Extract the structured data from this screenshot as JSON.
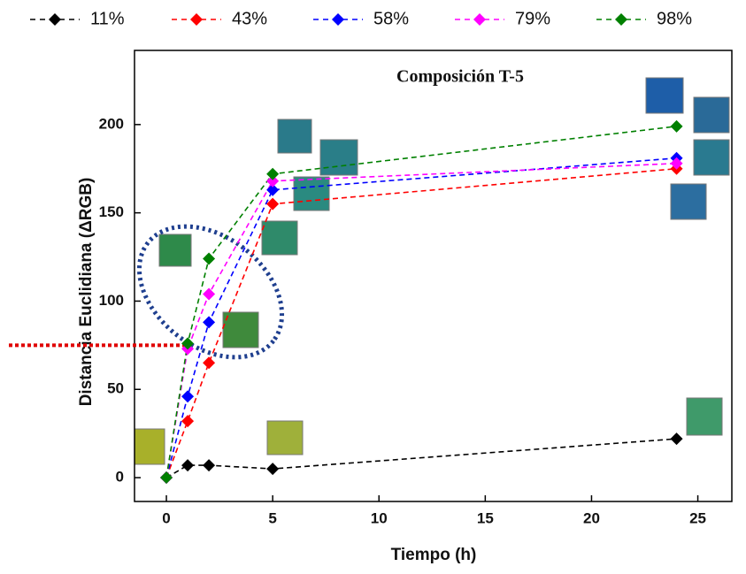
{
  "chart_data": {
    "type": "line",
    "title": "Composición T-5",
    "x_label": "Tiempo (h)",
    "y_label": "Distancia Euclidiana (ΔRGB)",
    "x": [
      0,
      1,
      2,
      5,
      24
    ],
    "series": [
      {
        "name": "11%",
        "color": "#000000",
        "values": [
          0,
          7,
          7,
          5,
          22
        ]
      },
      {
        "name": "43%",
        "color": "#ff0000",
        "values": [
          0,
          32,
          65,
          155,
          175
        ]
      },
      {
        "name": "58%",
        "color": "#0000ff",
        "values": [
          0,
          46,
          88,
          163,
          181
        ]
      },
      {
        "name": "79%",
        "color": "#ff00ff",
        "values": [
          0,
          73,
          104,
          168,
          178
        ]
      },
      {
        "name": "98%",
        "color": "#008000",
        "values": [
          0,
          76,
          124,
          172,
          199
        ]
      }
    ],
    "xlim": [
      -1.5,
      26.6
    ],
    "ylim": [
      -13.5,
      242
    ],
    "xticks": [
      0,
      5,
      10,
      15,
      20,
      25
    ],
    "yticks": [
      0,
      50,
      100,
      150,
      200
    ],
    "reference_line": 75,
    "reference_color": "#e00000"
  }
}
